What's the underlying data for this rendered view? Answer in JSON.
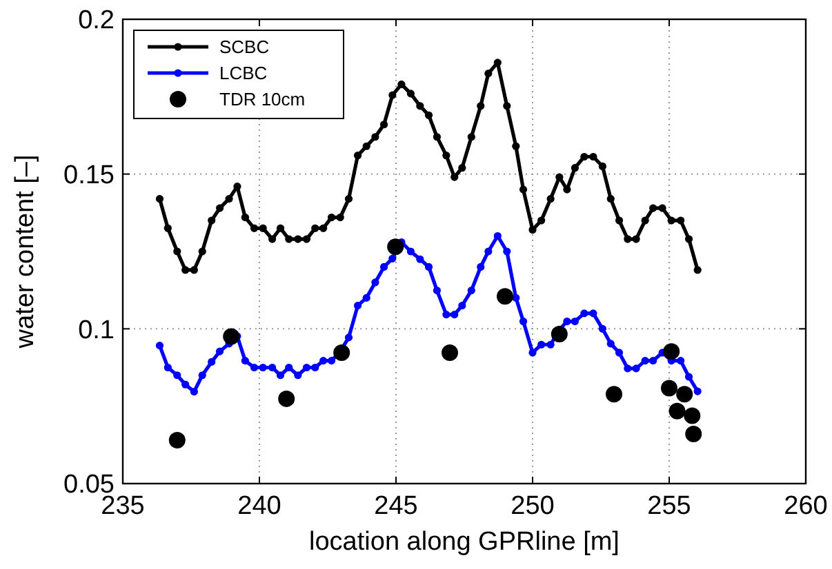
{
  "chart_data": {
    "type": "line",
    "xlabel": "location along GPRline [m]",
    "ylabel": "water content [–]",
    "xlim": [
      235,
      260
    ],
    "xticks": [
      235,
      240,
      245,
      250,
      255,
      260
    ],
    "ylim": [
      0.05,
      0.2
    ],
    "yticks": [
      0.05,
      0.1,
      0.15,
      0.2
    ],
    "grid": true,
    "legend": "top left",
    "marker": "circle",
    "series": [
      {
        "name": "SCBC",
        "color": "#000000",
        "x": [
          236.35,
          236.65,
          236.99,
          237.29,
          237.61,
          237.91,
          238.25,
          238.55,
          238.89,
          239.19,
          239.48,
          239.81,
          240.13,
          240.47,
          240.77,
          241.08,
          241.41,
          241.73,
          242.04,
          242.34,
          242.64,
          242.96,
          243.27,
          243.6,
          243.92,
          244.24,
          244.56,
          244.87,
          245.2,
          245.54,
          245.88,
          246.2,
          246.5,
          246.84,
          247.14,
          247.42,
          247.76,
          248.1,
          248.38,
          248.72,
          249.06,
          249.39,
          249.66,
          250.0,
          250.32,
          250.66,
          250.98,
          251.26,
          251.55,
          251.89,
          252.22,
          252.56,
          252.86,
          253.17,
          253.48,
          253.79,
          254.12,
          254.41,
          254.75,
          255.08,
          255.42,
          255.72,
          256.04
        ],
        "values": [
          0.142,
          0.1325,
          0.125,
          0.119,
          0.119,
          0.125,
          0.135,
          0.139,
          0.142,
          0.146,
          0.136,
          0.1325,
          0.1325,
          0.129,
          0.1325,
          0.129,
          0.129,
          0.129,
          0.1325,
          0.1325,
          0.136,
          0.136,
          0.142,
          0.156,
          0.159,
          0.162,
          0.166,
          0.1755,
          0.179,
          0.176,
          0.172,
          0.169,
          0.162,
          0.156,
          0.149,
          0.152,
          0.162,
          0.172,
          0.1825,
          0.186,
          0.172,
          0.159,
          0.145,
          0.132,
          0.135,
          0.142,
          0.149,
          0.145,
          0.152,
          0.1556,
          0.1556,
          0.1525,
          0.142,
          0.135,
          0.129,
          0.129,
          0.135,
          0.139,
          0.139,
          0.135,
          0.135,
          0.129,
          0.119
        ]
      },
      {
        "name": "LCBC",
        "color": "#0000ff",
        "x": [
          236.35,
          236.65,
          236.99,
          237.29,
          237.61,
          237.91,
          238.25,
          238.55,
          238.89,
          239.19,
          239.48,
          239.81,
          240.13,
          240.47,
          240.77,
          241.08,
          241.41,
          241.73,
          242.04,
          242.34,
          242.64,
          242.96,
          243.27,
          243.6,
          243.92,
          244.24,
          244.56,
          244.87,
          245.2,
          245.54,
          245.88,
          246.2,
          246.5,
          246.84,
          247.14,
          247.42,
          247.76,
          248.1,
          248.38,
          248.72,
          249.06,
          249.39,
          249.66,
          250.0,
          250.32,
          250.66,
          250.98,
          251.26,
          251.55,
          251.89,
          252.22,
          252.56,
          252.86,
          253.17,
          253.48,
          253.79,
          254.12,
          254.41,
          254.75,
          255.08,
          255.42,
          255.72,
          256.04
        ],
        "values": [
          0.0946,
          0.0875,
          0.085,
          0.082,
          0.0797,
          0.085,
          0.0893,
          0.0927,
          0.0952,
          0.0976,
          0.0897,
          0.0875,
          0.0875,
          0.0875,
          0.085,
          0.0875,
          0.085,
          0.0875,
          0.0875,
          0.0897,
          0.0897,
          0.0927,
          0.0972,
          0.1075,
          0.11,
          0.115,
          0.12,
          0.1227,
          0.128,
          0.125,
          0.1225,
          0.12,
          0.1124,
          0.1046,
          0.1046,
          0.1075,
          0.1124,
          0.12,
          0.125,
          0.13,
          0.125,
          0.11,
          0.1024,
          0.0923,
          0.0949,
          0.0949,
          0.0997,
          0.1024,
          0.1024,
          0.105,
          0.105,
          0.1,
          0.0952,
          0.0923,
          0.0872,
          0.0872,
          0.0897,
          0.0897,
          0.0923,
          0.0897,
          0.0897,
          0.0845,
          0.0798
        ]
      },
      {
        "name": "TDR 10cm",
        "type": "scatter",
        "color": "#000000",
        "x": [
          236.99,
          238.97,
          240.99,
          243.01,
          244.98,
          246.97,
          248.99,
          250.98,
          252.98,
          255.08,
          255.0,
          255.56,
          255.29,
          255.84,
          255.89
        ],
        "values": [
          0.064,
          0.0975,
          0.0774,
          0.0923,
          0.1265,
          0.0923,
          0.1105,
          0.0983,
          0.0789,
          0.0927,
          0.0808,
          0.0789,
          0.0734,
          0.0719,
          0.066
        ]
      }
    ]
  }
}
